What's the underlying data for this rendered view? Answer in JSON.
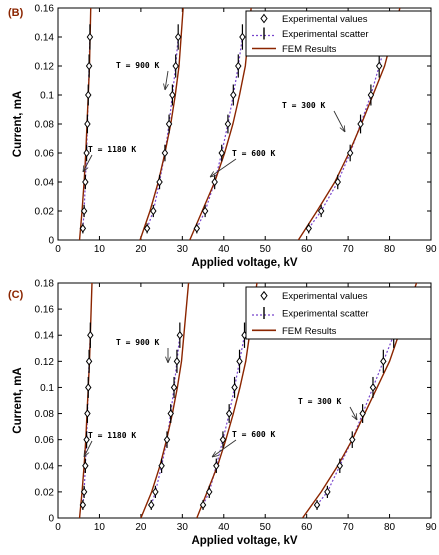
{
  "chart_data": [
    {
      "type": "line",
      "panel_label": "(B)",
      "xlabel": "Applied voltage, kV",
      "ylabel": "Current, mA",
      "xlim": [
        0,
        90
      ],
      "ylim": [
        0,
        0.16
      ],
      "xticks": [
        0,
        10,
        20,
        30,
        40,
        50,
        60,
        70,
        80,
        90
      ],
      "yticks": [
        0,
        0.02,
        0.04,
        0.06,
        0.08,
        0.1,
        0.12,
        0.14,
        0.16
      ],
      "ytick_labels": [
        "0",
        "0.02",
        "0.04",
        "0.06",
        "0.08",
        "0.1",
        "0.12",
        "0.14",
        "0.16"
      ],
      "grid": false,
      "legend": {
        "position": "top-right",
        "entries": [
          "Experimental values",
          "Experimental scatter",
          "FEM Results"
        ]
      },
      "series": [
        {
          "name": "T = 1180 K",
          "annotation": "T = 1180 K",
          "experimental_x": [
            6.0,
            6.3,
            6.6,
            6.9,
            7.1,
            7.3,
            7.5,
            7.7
          ],
          "experimental_y": [
            0.008,
            0.02,
            0.04,
            0.06,
            0.08,
            0.1,
            0.12,
            0.14
          ],
          "fem_x": [
            5.2,
            5.8,
            6.3,
            6.7,
            7.0,
            7.3,
            7.6,
            7.9
          ],
          "fem_y": [
            0.0,
            0.02,
            0.04,
            0.06,
            0.08,
            0.1,
            0.12,
            0.16
          ]
        },
        {
          "name": "T = 900 K",
          "annotation": "T = 900 K",
          "experimental_x": [
            21.5,
            23.0,
            24.5,
            25.8,
            26.8,
            27.6,
            28.4,
            29.0
          ],
          "experimental_y": [
            0.008,
            0.02,
            0.04,
            0.06,
            0.08,
            0.1,
            0.12,
            0.14
          ],
          "fem_x": [
            19.8,
            22.2,
            24.2,
            25.8,
            27.2,
            28.3,
            29.2,
            30.2
          ],
          "fem_y": [
            0.0,
            0.02,
            0.04,
            0.06,
            0.08,
            0.1,
            0.12,
            0.16
          ]
        },
        {
          "name": "T = 600 K",
          "annotation": "T = 600 K",
          "experimental_x": [
            33.5,
            35.5,
            37.8,
            39.5,
            41.0,
            42.3,
            43.5,
            44.5
          ],
          "experimental_y": [
            0.008,
            0.02,
            0.04,
            0.06,
            0.08,
            0.1,
            0.12,
            0.14
          ],
          "fem_x": [
            31.8,
            34.8,
            37.8,
            40.2,
            42.2,
            43.8,
            45.2,
            46.6
          ],
          "fem_y": [
            0.0,
            0.02,
            0.04,
            0.06,
            0.08,
            0.1,
            0.12,
            0.16
          ]
        },
        {
          "name": "T = 300 K",
          "annotation": "T = 300 K",
          "experimental_x": [
            60.5,
            63.5,
            67.5,
            70.5,
            73.0,
            75.5,
            77.5,
            79.5
          ],
          "experimental_y": [
            0.008,
            0.02,
            0.04,
            0.06,
            0.08,
            0.1,
            0.12,
            0.14
          ],
          "fem_x": [
            58.0,
            62.5,
            66.8,
            70.2,
            73.2,
            76.0,
            78.8,
            82.5
          ],
          "fem_y": [
            0.0,
            0.02,
            0.04,
            0.06,
            0.08,
            0.1,
            0.12,
            0.16
          ]
        }
      ]
    },
    {
      "type": "line",
      "panel_label": "(C)",
      "xlabel": "Applied voltage, kV",
      "ylabel": "Current, mA",
      "xlim": [
        0,
        90
      ],
      "ylim": [
        0,
        0.18
      ],
      "xticks": [
        0,
        10,
        20,
        30,
        40,
        50,
        60,
        70,
        80,
        90
      ],
      "yticks": [
        0,
        0.02,
        0.04,
        0.06,
        0.08,
        0.1,
        0.12,
        0.14,
        0.16,
        0.18
      ],
      "ytick_labels": [
        "0",
        "0.02",
        "0.04",
        "0.06",
        "0.08",
        "0.1",
        "0.12",
        "0.14",
        "0.16",
        "0.18"
      ],
      "grid": false,
      "legend": {
        "position": "top-right",
        "entries": [
          "Experimental values",
          "Experimental scatter",
          "FEM Results"
        ]
      },
      "series": [
        {
          "name": "T = 1180 K",
          "annotation": "T = 1180 K",
          "experimental_x": [
            6.0,
            6.3,
            6.6,
            6.9,
            7.1,
            7.3,
            7.5,
            7.8
          ],
          "experimental_y": [
            0.01,
            0.02,
            0.04,
            0.06,
            0.08,
            0.1,
            0.12,
            0.14
          ],
          "fem_x": [
            5.2,
            5.8,
            6.3,
            6.7,
            7.0,
            7.3,
            7.6,
            8.2
          ],
          "fem_y": [
            0.0,
            0.02,
            0.04,
            0.06,
            0.08,
            0.1,
            0.12,
            0.18
          ]
        },
        {
          "name": "T = 900 K",
          "annotation": "T = 900 K",
          "experimental_x": [
            22.5,
            23.5,
            25.0,
            26.3,
            27.2,
            28.0,
            28.7,
            29.4
          ],
          "experimental_y": [
            0.01,
            0.02,
            0.04,
            0.06,
            0.08,
            0.1,
            0.12,
            0.14
          ],
          "fem_x": [
            20.0,
            22.6,
            24.6,
            26.2,
            27.6,
            28.8,
            29.8,
            31.5
          ],
          "fem_y": [
            0.0,
            0.02,
            0.04,
            0.06,
            0.08,
            0.1,
            0.12,
            0.18
          ]
        },
        {
          "name": "T = 600 K",
          "annotation": "T = 600 K",
          "experimental_x": [
            35.0,
            36.5,
            38.2,
            39.8,
            41.3,
            42.6,
            43.8,
            45.0
          ],
          "experimental_y": [
            0.01,
            0.02,
            0.04,
            0.06,
            0.08,
            0.1,
            0.12,
            0.14
          ],
          "fem_x": [
            33.5,
            36.0,
            38.5,
            40.5,
            42.3,
            43.9,
            45.3,
            48.0
          ],
          "fem_y": [
            0.0,
            0.02,
            0.04,
            0.06,
            0.08,
            0.1,
            0.12,
            0.18
          ]
        },
        {
          "name": "T = 300 K",
          "annotation": "T = 300 K",
          "experimental_x": [
            62.5,
            65.0,
            68.0,
            71.0,
            73.5,
            76.0,
            78.5,
            81.0
          ],
          "experimental_y": [
            0.01,
            0.02,
            0.04,
            0.06,
            0.08,
            0.1,
            0.12,
            0.14
          ],
          "fem_x": [
            59.0,
            63.5,
            67.5,
            71.0,
            74.0,
            77.0,
            80.0,
            86.5
          ],
          "fem_y": [
            0.0,
            0.02,
            0.04,
            0.06,
            0.08,
            0.1,
            0.12,
            0.18
          ]
        }
      ]
    }
  ]
}
